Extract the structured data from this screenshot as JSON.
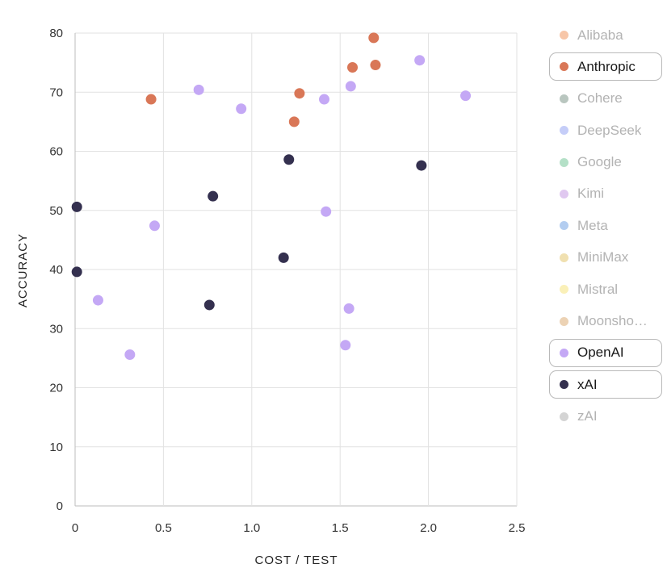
{
  "chart_data": {
    "type": "scatter",
    "xlabel": "COST / TEST",
    "ylabel": "ACCURACY",
    "xlim": [
      0,
      2.5
    ],
    "ylim": [
      0,
      80
    ],
    "x_ticks": [
      "0",
      "0.5",
      "1.0",
      "1.5",
      "2.0",
      "2.5"
    ],
    "y_ticks": [
      "0",
      "10",
      "20",
      "30",
      "40",
      "50",
      "60",
      "70",
      "80"
    ],
    "x_tick_values": [
      0,
      0.5,
      1.0,
      1.5,
      2.0,
      2.5
    ],
    "y_tick_values": [
      0,
      10,
      20,
      30,
      40,
      50,
      60,
      70,
      80
    ],
    "grid": true,
    "legend_position": "right",
    "legend": [
      {
        "name": "Alibaba",
        "color": "#f7c6a8",
        "active": false
      },
      {
        "name": "Anthropic",
        "color": "#d97757",
        "active": true
      },
      {
        "name": "Cohere",
        "color": "#b9c6bf",
        "active": false
      },
      {
        "name": "DeepSeek",
        "color": "#c5cdf8",
        "active": false
      },
      {
        "name": "Google",
        "color": "#b4e0c7",
        "active": false
      },
      {
        "name": "Kimi",
        "color": "#e0c8f0",
        "active": false
      },
      {
        "name": "Meta",
        "color": "#b3cdf0",
        "active": false
      },
      {
        "name": "MiniMax",
        "color": "#f0e0b0",
        "active": false
      },
      {
        "name": "Mistral",
        "color": "#faf0b8",
        "active": false
      },
      {
        "name": "Moonshot AI",
        "display": "Moonsho…",
        "color": "#ecd2b4",
        "active": false
      },
      {
        "name": "OpenAI",
        "color": "#c4a8f5",
        "active": true
      },
      {
        "name": "xAI",
        "color": "#34304f",
        "active": true
      },
      {
        "name": "zAI",
        "color": "#d4d4d4",
        "active": false
      }
    ],
    "series": [
      {
        "name": "Anthropic",
        "color": "#d97757",
        "points": [
          [
            0.43,
            68.8
          ],
          [
            1.24,
            65.0
          ],
          [
            1.27,
            69.8
          ],
          [
            1.57,
            74.2
          ],
          [
            1.69,
            79.2
          ],
          [
            1.7,
            74.6
          ]
        ]
      },
      {
        "name": "OpenAI",
        "color": "#c4a8f5",
        "points": [
          [
            0.13,
            34.8
          ],
          [
            0.31,
            25.6
          ],
          [
            0.45,
            47.4
          ],
          [
            0.7,
            70.4
          ],
          [
            0.94,
            67.2
          ],
          [
            1.41,
            68.8
          ],
          [
            1.42,
            49.8
          ],
          [
            1.53,
            27.2
          ],
          [
            1.55,
            33.4
          ],
          [
            1.56,
            71.0
          ],
          [
            1.95,
            75.4
          ],
          [
            2.21,
            69.4
          ]
        ]
      },
      {
        "name": "xAI",
        "color": "#34304f",
        "points": [
          [
            0.01,
            50.6
          ],
          [
            0.01,
            39.6
          ],
          [
            0.76,
            34.0
          ],
          [
            0.78,
            52.4
          ],
          [
            1.18,
            42.0
          ],
          [
            1.21,
            58.6
          ],
          [
            1.96,
            57.6
          ]
        ]
      }
    ]
  }
}
